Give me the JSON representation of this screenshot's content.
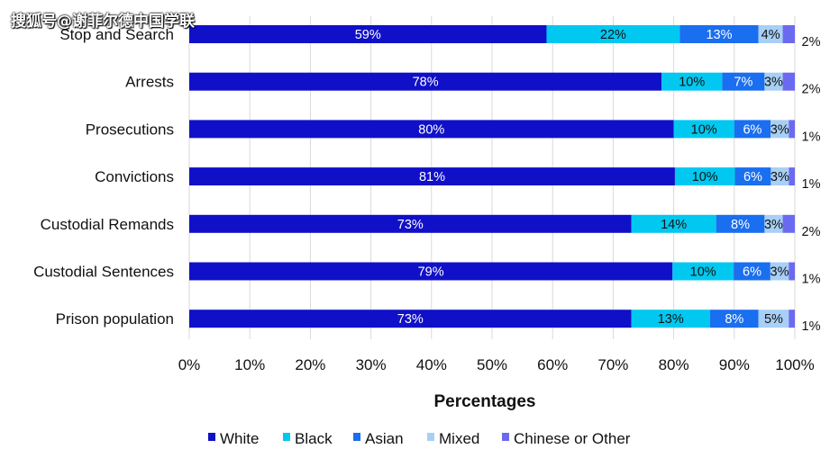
{
  "watermark": "搜狐号@谢菲尔德中国学联",
  "chart_data": {
    "type": "bar",
    "orientation": "horizontal",
    "stacked": true,
    "categories": [
      "Stop and Search",
      "Arrests",
      "Prosecutions",
      "Convictions",
      "Custodial Remands",
      "Custodial Sentences",
      "Prison population"
    ],
    "series": [
      {
        "name": "White",
        "color": "#1010c8",
        "values": [
          59,
          78,
          80,
          81,
          73,
          79,
          73
        ],
        "labels": [
          "59%",
          "78%",
          "80%",
          "81%",
          "73%",
          "79%",
          "73%"
        ],
        "label_color": "#ffffff"
      },
      {
        "name": "Black",
        "color": "#00c8f0",
        "values": [
          22,
          10,
          10,
          10,
          14,
          10,
          13
        ],
        "labels": [
          "22%",
          "10%",
          "10%",
          "10%",
          "14%",
          "10%",
          "13%"
        ],
        "label_color": "#111111"
      },
      {
        "name": "Asian",
        "color": "#1a6ef0",
        "values": [
          13,
          7,
          6,
          6,
          8,
          6,
          8
        ],
        "labels": [
          "13%",
          "7%",
          "6%",
          "6%",
          "8%",
          "6%",
          "8%"
        ],
        "label_color": "#ffffff"
      },
      {
        "name": "Mixed",
        "color": "#a8cff5",
        "values": [
          4,
          3,
          3,
          3,
          3,
          3,
          5
        ],
        "labels": [
          "4%",
          "3%",
          "3%",
          "3%",
          "3%",
          "3%",
          "5%"
        ],
        "label_color": "#111111"
      },
      {
        "name": "Chinese or Other",
        "color": "#6a6af0",
        "values": [
          2,
          2,
          1,
          1,
          2,
          1,
          1
        ],
        "labels": [
          "2%",
          "2%",
          "1%",
          "1%",
          "2%",
          "1%",
          "1%"
        ],
        "label_color": "#111111"
      }
    ],
    "xlabel": "Percentages",
    "xlim": [
      0,
      100
    ],
    "xticks": [
      0,
      10,
      20,
      30,
      40,
      50,
      60,
      70,
      80,
      90,
      100
    ],
    "xtick_labels": [
      "0%",
      "10%",
      "20%",
      "30%",
      "40%",
      "50%",
      "60%",
      "70%",
      "80%",
      "90%",
      "100%"
    ],
    "grid": "vertical",
    "legend_position": "bottom"
  }
}
